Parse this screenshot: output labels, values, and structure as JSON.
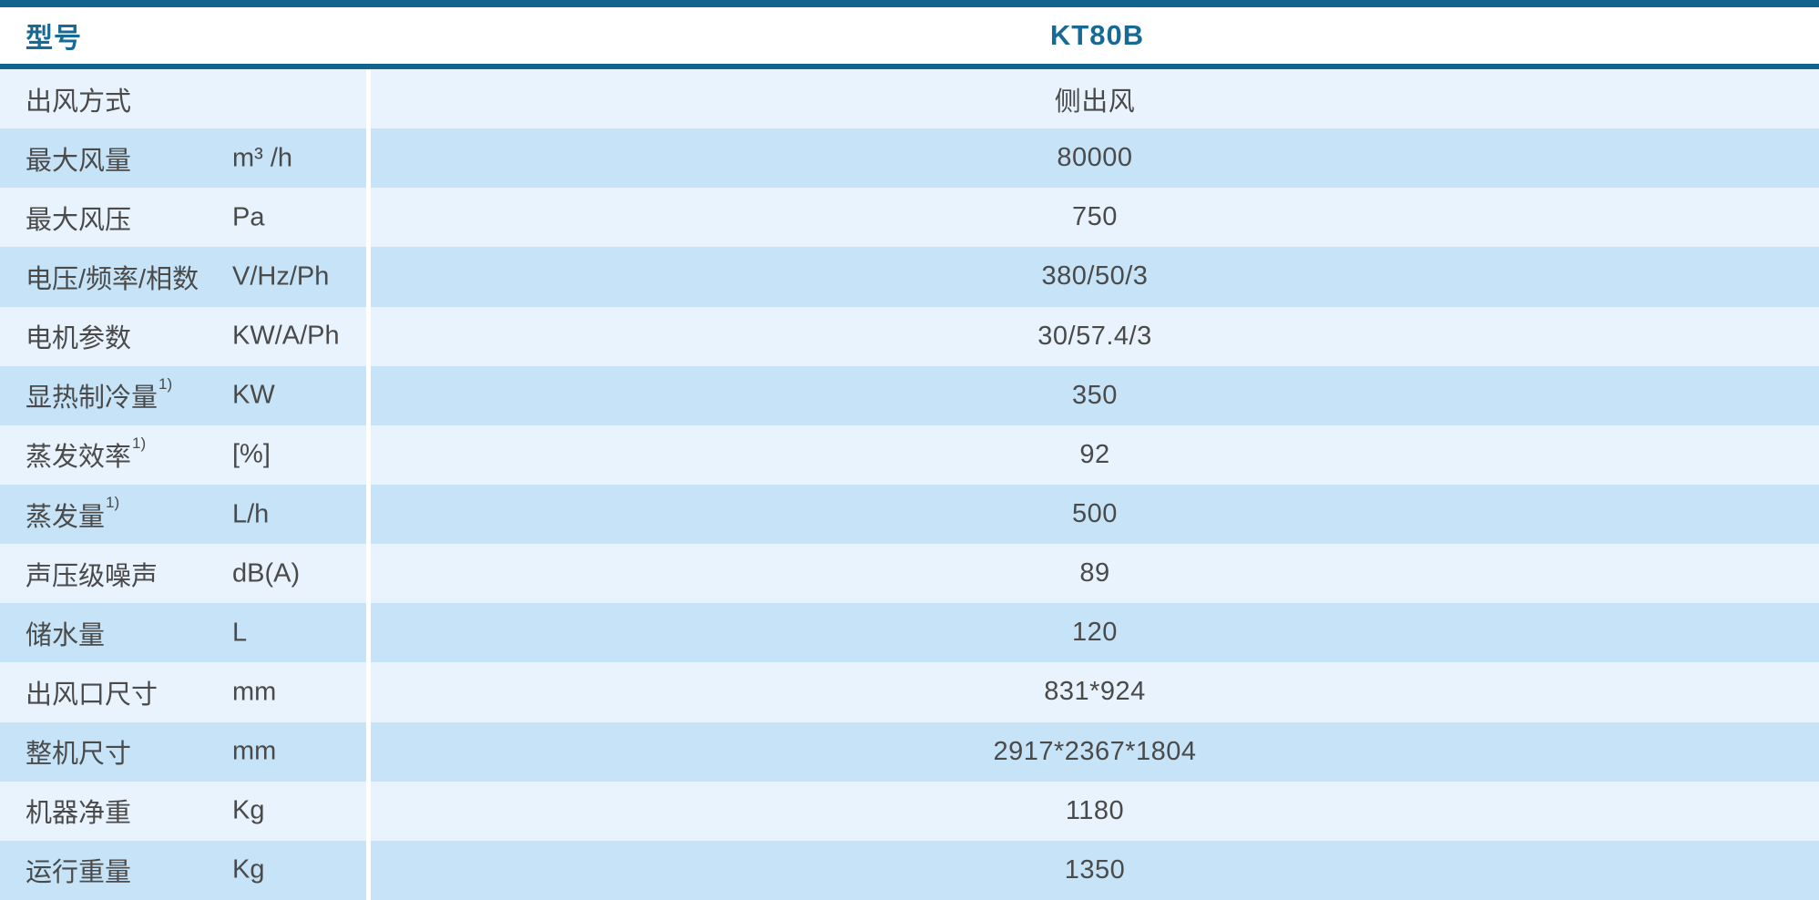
{
  "colors": {
    "accent_blue": "#12648e",
    "header_text_blue": "#176a93",
    "row_light_blue": "#e9f3fd",
    "row_dark_blue": "#c6e3f7",
    "body_text": "#4a4a4a"
  },
  "header": {
    "model_label": "型号",
    "model_value": "KT80B"
  },
  "rows": [
    {
      "label": "出风方式",
      "sup": "",
      "unit": "",
      "value": "侧出风"
    },
    {
      "label": "最大风量",
      "sup": "",
      "unit": "m³ /h",
      "value": "80000"
    },
    {
      "label": "最大风压",
      "sup": "",
      "unit": "Pa",
      "value": "750"
    },
    {
      "label": "电压/频率/相数",
      "sup": "",
      "unit": "V/Hz/Ph",
      "value": "380/50/3"
    },
    {
      "label": "电机参数",
      "sup": "",
      "unit": "KW/A/Ph",
      "value": "30/57.4/3"
    },
    {
      "label": "显热制冷量",
      "sup": "1)",
      "unit": "KW",
      "value": "350"
    },
    {
      "label": "蒸发效率",
      "sup": "1)",
      "unit": "[%]",
      "value": "92"
    },
    {
      "label": "蒸发量",
      "sup": "1)",
      "unit": "L/h",
      "value": "500"
    },
    {
      "label": "声压级噪声",
      "sup": "",
      "unit": "dB(A)",
      "value": "89"
    },
    {
      "label": "储水量",
      "sup": "",
      "unit": "L",
      "value": "120"
    },
    {
      "label": "出风口尺寸",
      "sup": "",
      "unit": "mm",
      "value": "831*924"
    },
    {
      "label": "整机尺寸",
      "sup": "",
      "unit": "mm",
      "value": "2917*2367*1804"
    },
    {
      "label": "机器净重",
      "sup": "",
      "unit": "Kg",
      "value": "1180"
    },
    {
      "label": "运行重量",
      "sup": "",
      "unit": "Kg",
      "value": "1350"
    }
  ]
}
